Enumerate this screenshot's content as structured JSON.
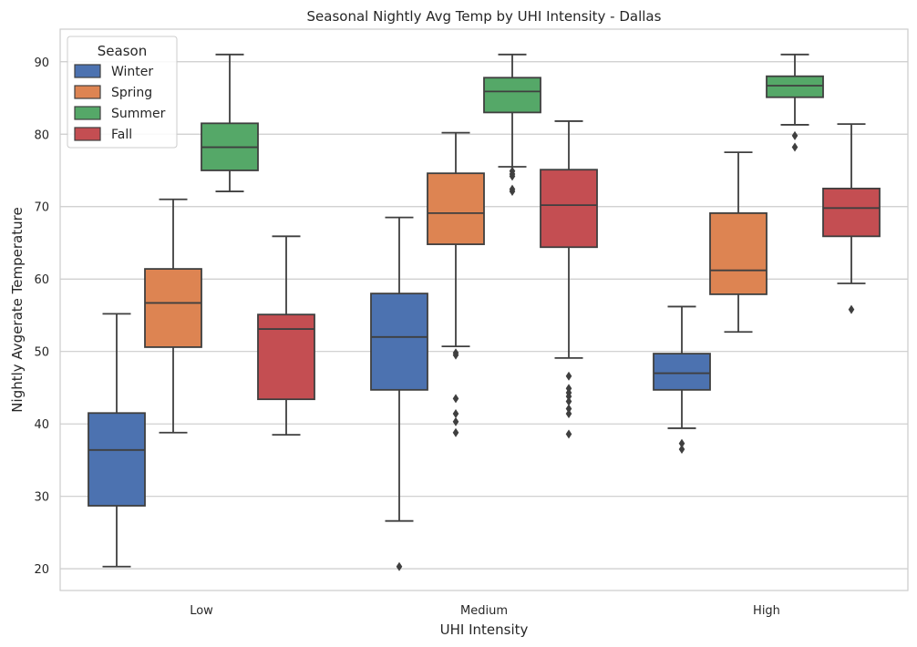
{
  "chart_data": {
    "type": "box",
    "title": "Seasonal Nightly Avg Temp by UHI Intensity - Dallas",
    "xlabel": "UHI Intensity",
    "ylabel": "Nightly Avgerate Temperature",
    "categories": [
      "Low",
      "Medium",
      "High"
    ],
    "ylim": [
      17,
      94.5
    ],
    "yticks": [
      20,
      30,
      40,
      50,
      60,
      70,
      80,
      90
    ],
    "grid": "horizontal",
    "legend": {
      "title": "Season",
      "placement": "top-left"
    },
    "series": [
      {
        "name": "Winter",
        "color": "#4c72b0",
        "boxes": [
          {
            "whislo": 20.3,
            "q1": 28.7,
            "med": 36.4,
            "q3": 41.5,
            "whishi": 55.2,
            "fliers": []
          },
          {
            "whislo": 26.6,
            "q1": 44.7,
            "med": 52.0,
            "q3": 58.0,
            "whishi": 68.5,
            "fliers": [
              20.3
            ]
          },
          {
            "whislo": 39.4,
            "q1": 44.7,
            "med": 47.0,
            "q3": 49.7,
            "whishi": 56.2,
            "fliers": [
              37.3,
              36.5
            ]
          }
        ]
      },
      {
        "name": "Spring",
        "color": "#dd8452",
        "boxes": [
          {
            "whislo": 38.8,
            "q1": 50.6,
            "med": 56.7,
            "q3": 61.4,
            "whishi": 71.0,
            "fliers": []
          },
          {
            "whislo": 50.7,
            "q1": 64.8,
            "med": 69.1,
            "q3": 74.6,
            "whishi": 80.2,
            "fliers": [
              49.8,
              49.5,
              43.5,
              41.4,
              40.3,
              38.8
            ]
          },
          {
            "whislo": 52.7,
            "q1": 57.9,
            "med": 61.2,
            "q3": 69.1,
            "whishi": 77.5,
            "fliers": []
          }
        ]
      },
      {
        "name": "Summer",
        "color": "#55a868",
        "boxes": [
          {
            "whislo": 72.1,
            "q1": 75.0,
            "med": 78.2,
            "q3": 81.5,
            "whishi": 91.0,
            "fliers": []
          },
          {
            "whislo": 75.5,
            "q1": 83.0,
            "med": 85.9,
            "q3": 87.8,
            "whishi": 91.0,
            "fliers": [
              74.9,
              74.5,
              74.2,
              72.4,
              72.1
            ]
          },
          {
            "whislo": 81.3,
            "q1": 85.1,
            "med": 86.7,
            "q3": 88.0,
            "whishi": 91.0,
            "fliers": [
              79.8,
              78.2
            ]
          }
        ]
      },
      {
        "name": "Fall",
        "color": "#c44e52",
        "boxes": [
          {
            "whislo": 38.5,
            "q1": 43.4,
            "med": 53.1,
            "q3": 55.1,
            "whishi": 65.9,
            "fliers": []
          },
          {
            "whislo": 49.1,
            "q1": 64.4,
            "med": 70.2,
            "q3": 75.1,
            "whishi": 81.8,
            "fliers": [
              46.6,
              44.9,
              44.3,
              43.8,
              43.1,
              42.1,
              41.4,
              38.6
            ]
          },
          {
            "whislo": 59.4,
            "q1": 65.9,
            "med": 69.8,
            "q3": 72.5,
            "whishi": 81.4,
            "fliers": [
              55.8
            ]
          }
        ]
      }
    ]
  }
}
